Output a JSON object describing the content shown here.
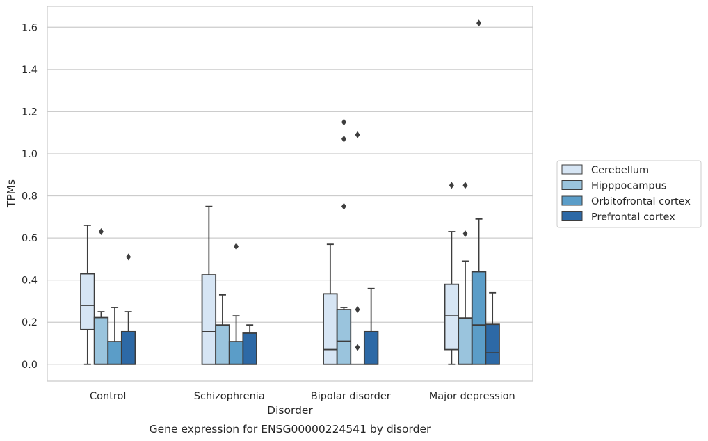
{
  "caption": "Gene expression for ENSG00000224541 by disorder",
  "chart_data": {
    "type": "boxplot",
    "title": "",
    "xlabel": "Disorder",
    "ylabel": "TPMs",
    "ylim": [
      -0.08,
      1.7
    ],
    "yticks": [
      0.0,
      0.2,
      0.4,
      0.6,
      0.8,
      1.0,
      1.2,
      1.4,
      1.6
    ],
    "ytick_labels": [
      "0.0",
      "0.2",
      "0.4",
      "0.6",
      "0.8",
      "1.0",
      "1.2",
      "1.4",
      "1.6"
    ],
    "grid": "horizontal",
    "legend_position": "right",
    "categories": [
      "Control",
      "Schizophrenia",
      "Bipolar disorder",
      "Major depression"
    ],
    "series": [
      {
        "name": "Cerebellum",
        "color": "#d6e5f4",
        "boxes": [
          {
            "whislo": 0.0,
            "q1": 0.165,
            "med": 0.28,
            "q3": 0.43,
            "whishi": 0.66,
            "fliers": []
          },
          {
            "whislo": 0.0,
            "q1": 0.0,
            "med": 0.155,
            "q3": 0.425,
            "whishi": 0.75,
            "fliers": []
          },
          {
            "whislo": 0.0,
            "q1": 0.0,
            "med": 0.07,
            "q3": 0.335,
            "whishi": 0.57,
            "fliers": []
          },
          {
            "whislo": 0.0,
            "q1": 0.07,
            "med": 0.23,
            "q3": 0.38,
            "whishi": 0.63,
            "fliers": [
              0.85
            ]
          }
        ]
      },
      {
        "name": "Hipppocampus",
        "color": "#9ac4dd",
        "boxes": [
          {
            "whislo": 0.0,
            "q1": 0.0,
            "med": 0.0,
            "q3": 0.222,
            "whishi": 0.25,
            "fliers": [
              0.63
            ]
          },
          {
            "whislo": 0.0,
            "q1": 0.0,
            "med": 0.0,
            "q3": 0.187,
            "whishi": 0.33,
            "fliers": []
          },
          {
            "whislo": 0.0,
            "q1": 0.0,
            "med": 0.11,
            "q3": 0.26,
            "whishi": 0.27,
            "fliers": [
              0.75,
              1.07,
              1.15
            ]
          },
          {
            "whislo": 0.0,
            "q1": 0.0,
            "med": 0.0,
            "q3": 0.22,
            "whishi": 0.49,
            "fliers": [
              0.62,
              0.85
            ]
          }
        ]
      },
      {
        "name": "Orbitofrontal cortex",
        "color": "#5b9dc8",
        "boxes": [
          {
            "whislo": 0.0,
            "q1": 0.0,
            "med": 0.0,
            "q3": 0.108,
            "whishi": 0.27,
            "fliers": []
          },
          {
            "whislo": 0.0,
            "q1": 0.0,
            "med": 0.0,
            "q3": 0.108,
            "whishi": 0.23,
            "fliers": [
              0.56
            ]
          },
          {
            "whislo": 0.0,
            "q1": 0.0,
            "med": 0.0,
            "q3": 0.0,
            "whishi": 0.0,
            "fliers": [
              0.08,
              0.26,
              1.09
            ]
          },
          {
            "whislo": 0.0,
            "q1": 0.0,
            "med": 0.187,
            "q3": 0.44,
            "whishi": 0.69,
            "fliers": [
              1.62
            ]
          }
        ]
      },
      {
        "name": "Prefrontal cortex",
        "color": "#2d69a6",
        "boxes": [
          {
            "whislo": 0.0,
            "q1": 0.0,
            "med": 0.0,
            "q3": 0.155,
            "whishi": 0.25,
            "fliers": [
              0.51
            ]
          },
          {
            "whislo": 0.0,
            "q1": 0.0,
            "med": 0.0,
            "q3": 0.148,
            "whishi": 0.187,
            "fliers": []
          },
          {
            "whislo": 0.0,
            "q1": 0.0,
            "med": 0.0,
            "q3": 0.155,
            "whishi": 0.36,
            "fliers": []
          },
          {
            "whislo": 0.0,
            "q1": 0.0,
            "med": 0.055,
            "q3": 0.19,
            "whishi": 0.34,
            "fliers": []
          }
        ]
      }
    ]
  }
}
